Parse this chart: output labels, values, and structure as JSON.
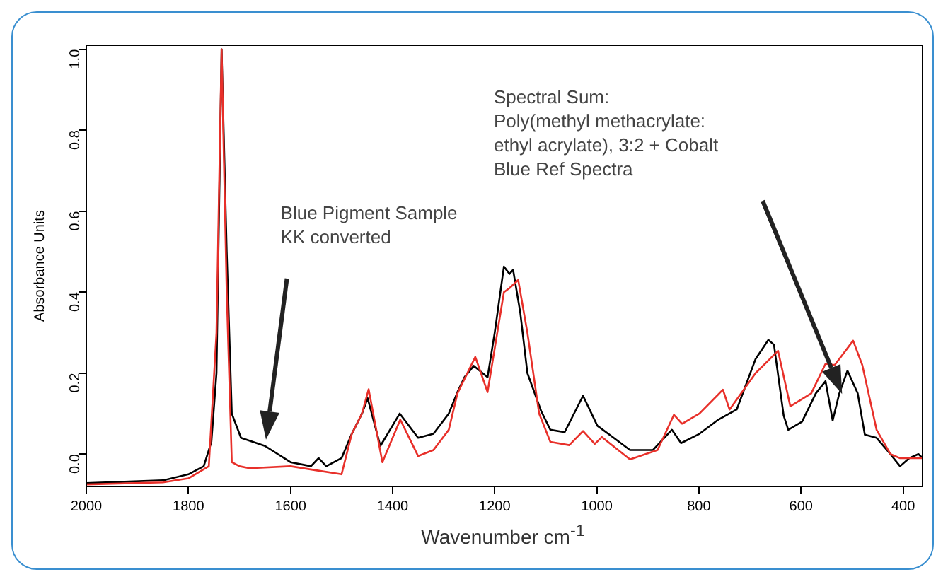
{
  "chart_data": {
    "type": "line",
    "xlabel": "Wavenumber cm$^{-1}$",
    "ylabel": "Absorbance Units",
    "xlim": [
      2000,
      362
    ],
    "xticks": [
      2000,
      1800,
      1600,
      1400,
      1200,
      1000,
      800,
      600,
      400
    ],
    "ylim": [
      -0.08,
      1.01
    ],
    "yticks": [
      {
        "value": 0,
        "label": "0.0"
      },
      0.2,
      0.4,
      0.6,
      0.8,
      {
        "value": 1,
        "label": "1.0"
      }
    ],
    "grid": false,
    "legend": false,
    "marker": "none",
    "line_style": "solid",
    "annotations": [
      "Blue Pigment Sample\nKK converted",
      "Spectral Sum:\nPoly(methyl methacrylate:\nethyl acrylate), 3:2 + Cobalt\nBlue Ref Spectra"
    ],
    "series": [
      {
        "color": "#e8302a",
        "x": [
          2000,
          1850,
          1800,
          1760,
          1745,
          1735,
          1725,
          1715,
          1700,
          1680,
          1600,
          1550,
          1500,
          1480,
          1460,
          1447,
          1420,
          1385,
          1350,
          1320,
          1290,
          1273,
          1238,
          1214,
          1182,
          1171,
          1154,
          1136,
          1113,
          1091,
          1054,
          1027,
          1004,
          990,
          935,
          881,
          849,
          833,
          799,
          753,
          740,
          689,
          645,
          621,
          580,
          552,
          534,
          498,
          480,
          452,
          425,
          406,
          380,
          362
        ],
        "values": [
          -0.075,
          -0.07,
          -0.06,
          -0.03,
          0.3,
          1.0,
          0.4,
          -0.02,
          -0.03,
          -0.035,
          -0.03,
          -0.04,
          -0.05,
          0.05,
          0.1,
          0.16,
          -0.02,
          0.085,
          -0.005,
          0.01,
          0.06,
          0.15,
          0.24,
          0.153,
          0.4,
          0.41,
          0.43,
          0.3,
          0.1,
          0.03,
          0.022,
          0.057,
          0.025,
          0.042,
          -0.013,
          0.01,
          0.097,
          0.075,
          0.1,
          0.159,
          0.11,
          0.2,
          0.255,
          0.118,
          0.15,
          0.223,
          0.22,
          0.28,
          0.22,
          0.06,
          0.0,
          -0.01,
          -0.01,
          -0.01
        ]
      },
      {
        "color": "#000000",
        "x": [
          2000,
          1850,
          1800,
          1770,
          1755,
          1745,
          1735,
          1725,
          1715,
          1697,
          1650,
          1600,
          1560,
          1545,
          1530,
          1515,
          1500,
          1480,
          1460,
          1449,
          1424,
          1386,
          1350,
          1320,
          1290,
          1273,
          1259,
          1241,
          1214,
          1200,
          1182,
          1171,
          1164,
          1150,
          1136,
          1109,
          1091,
          1063,
          1027,
          999,
          972,
          935,
          890,
          853,
          835,
          799,
          762,
          726,
          689,
          664,
          653,
          634,
          625,
          598,
          571,
          552,
          538,
          525,
          509,
          489,
          475,
          452,
          425,
          406,
          388,
          370,
          362
        ],
        "values": [
          -0.072,
          -0.065,
          -0.05,
          -0.03,
          0.03,
          0.2,
          1.0,
          0.5,
          0.1,
          0.04,
          0.02,
          -0.02,
          -0.03,
          -0.01,
          -0.03,
          -0.02,
          -0.01,
          0.05,
          0.1,
          0.138,
          0.02,
          0.1,
          0.04,
          0.05,
          0.1,
          0.153,
          0.19,
          0.218,
          0.19,
          0.3,
          0.463,
          0.445,
          0.455,
          0.35,
          0.2,
          0.106,
          0.06,
          0.054,
          0.144,
          0.07,
          0.045,
          0.01,
          0.01,
          0.06,
          0.027,
          0.05,
          0.085,
          0.11,
          0.235,
          0.282,
          0.27,
          0.095,
          0.06,
          0.08,
          0.15,
          0.18,
          0.083,
          0.15,
          0.206,
          0.15,
          0.048,
          0.04,
          0.0,
          -0.03,
          -0.01,
          0.0,
          -0.01
        ]
      }
    ]
  }
}
